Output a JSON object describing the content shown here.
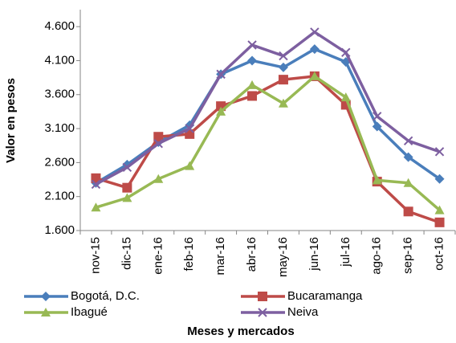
{
  "chart_data": {
    "type": "line",
    "x_label": "Meses y mercados",
    "y_label": "Valor en pesos",
    "categories": [
      "nov-15",
      "dic-15",
      "ene-16",
      "feb-16",
      "mar-16",
      "abr-16",
      "may-16",
      "jun-16",
      "jul-16",
      "ago-16",
      "sep-16",
      "oct-16"
    ],
    "series": [
      {
        "name": "Bogotá, D.C.",
        "color": "#4a7ebb",
        "marker": "diamond",
        "values": [
          2300,
          2570,
          2900,
          3150,
          3900,
          4100,
          4000,
          4270,
          4080,
          3130,
          2680,
          2360
        ]
      },
      {
        "name": "Bucaramanga",
        "color": "#be4b48",
        "marker": "square",
        "values": [
          2370,
          2230,
          2980,
          3020,
          3430,
          3580,
          3820,
          3870,
          3450,
          2320,
          1880,
          1720
        ]
      },
      {
        "name": "Ibagué",
        "color": "#98b954",
        "marker": "triangle",
        "values": [
          1940,
          2080,
          2360,
          2550,
          3350,
          3740,
          3470,
          3870,
          3560,
          2340,
          2300,
          1900
        ]
      },
      {
        "name": "Neiva",
        "color": "#7d5fa0",
        "marker": "x",
        "values": [
          2280,
          2530,
          2880,
          3100,
          3900,
          4330,
          4170,
          4520,
          4220,
          3280,
          2920,
          2760
        ]
      }
    ],
    "ylim": [
      1600,
      4850
    ],
    "yticks": [
      {
        "value": 1600,
        "label": "1.600"
      },
      {
        "value": 2100,
        "label": "2.100"
      },
      {
        "value": 2600,
        "label": "2.600"
      },
      {
        "value": 3100,
        "label": "3.100"
      },
      {
        "value": 3600,
        "label": "3.600"
      },
      {
        "value": 4100,
        "label": "4.100"
      },
      {
        "value": 4600,
        "label": "4.600"
      }
    ],
    "grid": false
  }
}
